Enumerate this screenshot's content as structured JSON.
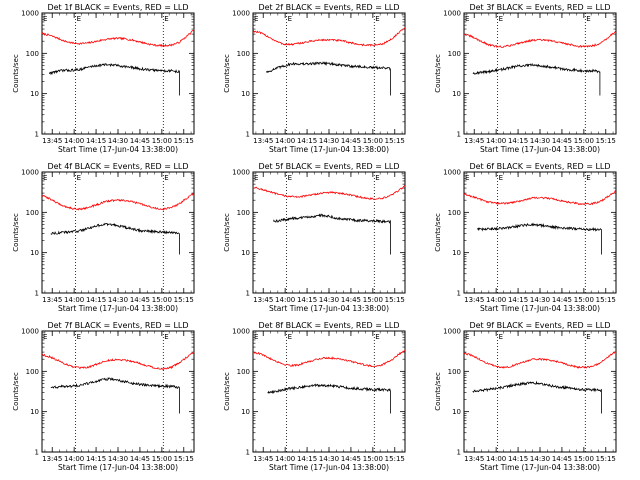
{
  "chart_data": [
    {
      "type": "line",
      "title": "Det 1f BLACK = Events, RED = LLD",
      "ylabel": "Counts/sec",
      "xlabel": "Start Time (17-Jun-04 13:38:00)",
      "y_scale": "log",
      "ylim": [
        1,
        1000
      ],
      "yticks": [
        "1",
        "10",
        "100",
        "1000"
      ],
      "xticks": [
        "13:45",
        "14:00",
        "14:15",
        "14:30",
        "14:45",
        "15:00",
        "15:15"
      ],
      "x_range": [
        "13:38",
        "15:22"
      ],
      "vlines": [
        "14:01",
        "15:01"
      ],
      "vline_label": "E",
      "series": [
        {
          "color": "#ff0000",
          "values": [
            310,
            280,
            240,
            200,
            180,
            175,
            180,
            195,
            215,
            230,
            235,
            228,
            210,
            190,
            170,
            158,
            155,
            160,
            185,
            260,
            380
          ]
        },
        {
          "color": "#000000",
          "values": [
            null,
            32,
            36,
            38,
            38,
            40,
            45,
            49,
            52,
            52,
            50,
            47,
            44,
            41,
            39,
            38,
            37,
            37,
            35,
            null,
            null
          ]
        }
      ],
      "series_extent": [
        {
          "start": "13:38",
          "end": "15:22"
        },
        {
          "start": "13:43",
          "end": "15:12"
        }
      ]
    },
    {
      "type": "line",
      "title": "Det 2f BLACK = Events, RED = LLD",
      "ylabel": "Counts/sec",
      "xlabel": "Start Time (17-Jun-04 13:38:00)",
      "y_scale": "log",
      "ylim": [
        1,
        1000
      ],
      "yticks": [
        "1",
        "10",
        "100",
        "1000"
      ],
      "xticks": [
        "13:45",
        "14:00",
        "14:15",
        "14:30",
        "14:45",
        "15:00",
        "15:15"
      ],
      "x_range": [
        "13:38",
        "15:22"
      ],
      "vlines": [
        "14:01",
        "15:01"
      ],
      "vline_label": "E",
      "series": [
        {
          "color": "#ff0000",
          "values": [
            360,
            320,
            260,
            200,
            170,
            165,
            175,
            190,
            205,
            215,
            215,
            210,
            200,
            180,
            165,
            160,
            160,
            170,
            210,
            300,
            430
          ]
        },
        {
          "color": "#000000",
          "values": [
            null,
            null,
            35,
            42,
            48,
            55,
            55,
            54,
            56,
            58,
            56,
            52,
            50,
            48,
            47,
            45,
            44,
            44,
            42,
            null,
            null
          ]
        }
      ],
      "series_extent": [
        {
          "start": "13:38",
          "end": "15:22"
        },
        {
          "start": "13:47",
          "end": "15:12"
        }
      ]
    },
    {
      "type": "line",
      "title": "Det 3f BLACK = Events, RED = LLD",
      "ylabel": "Counts/sec",
      "xlabel": "Start Time (17-Jun-04 13:38:00)",
      "y_scale": "log",
      "ylim": [
        1,
        1000
      ],
      "yticks": [
        "1",
        "10",
        "100",
        "1000"
      ],
      "xticks": [
        "13:45",
        "14:00",
        "14:15",
        "14:30",
        "14:45",
        "15:00",
        "15:15"
      ],
      "x_range": [
        "13:38",
        "15:22"
      ],
      "vlines": [
        "14:01",
        "15:01"
      ],
      "vline_label": "E",
      "series": [
        {
          "color": "#ff0000",
          "values": [
            300,
            260,
            210,
            170,
            150,
            145,
            155,
            175,
            195,
            210,
            215,
            210,
            195,
            180,
            165,
            150,
            148,
            155,
            180,
            250,
            360
          ]
        },
        {
          "color": "#000000",
          "values": [
            null,
            32,
            33,
            35,
            37,
            40,
            44,
            48,
            50,
            51,
            50,
            47,
            44,
            41,
            39,
            38,
            37,
            37,
            35,
            null,
            null
          ]
        }
      ],
      "series_extent": [
        {
          "start": "13:38",
          "end": "15:22"
        },
        {
          "start": "13:44",
          "end": "15:11"
        }
      ]
    },
    {
      "type": "line",
      "title": "Det 4f BLACK = Events, RED = LLD",
      "ylabel": "Counts/sec",
      "xlabel": "Start Time (17-Jun-04 13:38:00)",
      "y_scale": "log",
      "ylim": [
        1,
        1000
      ],
      "yticks": [
        "1",
        "10",
        "100",
        "1000"
      ],
      "xticks": [
        "13:45",
        "14:00",
        "14:15",
        "14:30",
        "14:45",
        "15:00",
        "15:15"
      ],
      "x_range": [
        "13:38",
        "15:22"
      ],
      "vlines": [
        "14:01",
        "15:01"
      ],
      "vline_label": "E",
      "series": [
        {
          "color": "#ff0000",
          "values": [
            260,
            220,
            170,
            140,
            125,
            120,
            130,
            150,
            175,
            195,
            200,
            195,
            180,
            160,
            140,
            125,
            120,
            130,
            160,
            220,
            300
          ]
        },
        {
          "color": "#000000",
          "values": [
            null,
            30,
            31,
            32,
            33,
            35,
            40,
            45,
            50,
            50,
            47,
            42,
            38,
            35,
            34,
            33,
            32,
            32,
            31,
            null,
            null
          ]
        }
      ],
      "series_extent": [
        {
          "start": "13:38",
          "end": "15:22"
        },
        {
          "start": "13:44",
          "end": "15:12"
        }
      ]
    },
    {
      "type": "line",
      "title": "Det 5f BLACK = Events, RED = LLD",
      "ylabel": "Counts/sec",
      "xlabel": "Start Time (17-Jun-04 13:38:00)",
      "y_scale": "log",
      "ylim": [
        1,
        1000
      ],
      "yticks": [
        "1",
        "10",
        "100",
        "1000"
      ],
      "xticks": [
        "13:45",
        "14:00",
        "14:15",
        "14:30",
        "14:45",
        "15:00",
        "15:15"
      ],
      "x_range": [
        "13:38",
        "15:22"
      ],
      "vlines": [
        "14:01",
        "15:01"
      ],
      "vline_label": "E",
      "series": [
        {
          "color": "#ff0000",
          "values": [
            420,
            380,
            330,
            290,
            260,
            245,
            245,
            255,
            275,
            300,
            310,
            305,
            290,
            265,
            240,
            220,
            215,
            220,
            255,
            330,
            450
          ]
        },
        {
          "color": "#000000",
          "values": [
            null,
            null,
            null,
            60,
            65,
            70,
            72,
            75,
            80,
            85,
            80,
            72,
            68,
            65,
            63,
            62,
            61,
            60,
            58,
            null,
            null
          ]
        }
      ],
      "series_extent": [
        {
          "start": "13:38",
          "end": "15:22"
        },
        {
          "start": "13:52",
          "end": "15:12"
        }
      ]
    },
    {
      "type": "line",
      "title": "Det 6f BLACK = Events, RED = LLD",
      "ylabel": "Counts/sec",
      "xlabel": "Start Time (17-Jun-04 13:38:00)",
      "y_scale": "log",
      "ylim": [
        1,
        1000
      ],
      "yticks": [
        "1",
        "10",
        "100",
        "1000"
      ],
      "xticks": [
        "13:45",
        "14:00",
        "14:15",
        "14:30",
        "14:45",
        "15:00",
        "15:15"
      ],
      "x_range": [
        "13:38",
        "15:22"
      ],
      "vlines": [
        "14:01",
        "15:01"
      ],
      "vline_label": "E",
      "series": [
        {
          "color": "#ff0000",
          "values": [
            280,
            250,
            215,
            185,
            170,
            165,
            170,
            185,
            205,
            225,
            230,
            225,
            210,
            190,
            175,
            165,
            160,
            165,
            190,
            250,
            340
          ]
        },
        {
          "color": "#000000",
          "values": [
            null,
            null,
            38,
            38,
            39,
            40,
            42,
            45,
            48,
            50,
            48,
            45,
            43,
            41,
            40,
            39,
            38,
            38,
            37,
            null,
            null
          ]
        }
      ],
      "series_extent": [
        {
          "start": "13:38",
          "end": "15:22"
        },
        {
          "start": "13:47",
          "end": "15:12"
        }
      ]
    },
    {
      "type": "line",
      "title": "Det 7f BLACK = Events, RED = LLD",
      "ylabel": "Counts/sec",
      "xlabel": "Start Time (17-Jun-04 13:38:00)",
      "y_scale": "log",
      "ylim": [
        1,
        1000
      ],
      "yticks": [
        "1",
        "10",
        "100",
        "1000"
      ],
      "xticks": [
        "13:45",
        "14:00",
        "14:15",
        "14:30",
        "14:45",
        "15:00",
        "15:15"
      ],
      "x_range": [
        "13:38",
        "15:22"
      ],
      "vlines": [
        "14:01",
        "15:01"
      ],
      "vline_label": "E",
      "series": [
        {
          "color": "#ff0000",
          "values": [
            260,
            230,
            190,
            155,
            130,
            120,
            125,
            145,
            170,
            190,
            195,
            190,
            175,
            155,
            135,
            120,
            115,
            125,
            160,
            220,
            300
          ]
        },
        {
          "color": "#000000",
          "values": [
            null,
            40,
            41,
            42,
            43,
            45,
            50,
            55,
            62,
            65,
            60,
            55,
            50,
            47,
            45,
            44,
            43,
            42,
            40,
            null,
            null
          ]
        }
      ],
      "series_extent": [
        {
          "start": "13:38",
          "end": "15:22"
        },
        {
          "start": "13:44",
          "end": "15:12"
        }
      ]
    },
    {
      "type": "line",
      "title": "Det 8f BLACK = Events, RED = LLD",
      "ylabel": "Counts/sec",
      "xlabel": "Start Time (17-Jun-04 13:38:00)",
      "y_scale": "log",
      "ylim": [
        1,
        1000
      ],
      "yticks": [
        "1",
        "10",
        "100",
        "1000"
      ],
      "xticks": [
        "13:45",
        "14:00",
        "14:15",
        "14:30",
        "14:45",
        "15:00",
        "15:15"
      ],
      "x_range": [
        "13:38",
        "15:22"
      ],
      "vlines": [
        "14:01",
        "15:01"
      ],
      "vline_label": "E",
      "series": [
        {
          "color": "#ff0000",
          "values": [
            300,
            270,
            220,
            180,
            150,
            140,
            145,
            165,
            190,
            210,
            215,
            210,
            195,
            175,
            155,
            140,
            135,
            145,
            180,
            250,
            340
          ]
        },
        {
          "color": "#000000",
          "values": [
            null,
            null,
            30,
            32,
            35,
            38,
            40,
            42,
            45,
            45,
            44,
            42,
            40,
            38,
            37,
            36,
            35,
            35,
            34,
            null,
            null
          ]
        }
      ],
      "series_extent": [
        {
          "start": "13:38",
          "end": "15:22"
        },
        {
          "start": "13:48",
          "end": "15:12"
        }
      ]
    },
    {
      "type": "line",
      "title": "Det 9f BLACK = Events, RED = LLD",
      "ylabel": "Counts/sec",
      "xlabel": "Start Time (17-Jun-04 13:38:00)",
      "y_scale": "log",
      "ylim": [
        1,
        1000
      ],
      "yticks": [
        "1",
        "10",
        "100",
        "1000"
      ],
      "xticks": [
        "13:45",
        "14:00",
        "14:15",
        "14:30",
        "14:45",
        "15:00",
        "15:15"
      ],
      "x_range": [
        "13:38",
        "15:22"
      ],
      "vlines": [
        "14:01",
        "15:01"
      ],
      "vline_label": "E",
      "series": [
        {
          "color": "#ff0000",
          "values": [
            280,
            250,
            200,
            160,
            135,
            125,
            130,
            150,
            175,
            195,
            200,
            195,
            180,
            160,
            140,
            128,
            125,
            135,
            165,
            230,
            310
          ]
        },
        {
          "color": "#000000",
          "values": [
            null,
            32,
            33,
            35,
            37,
            40,
            43,
            47,
            50,
            52,
            50,
            46,
            42,
            40,
            38,
            36,
            35,
            35,
            34,
            null,
            null
          ]
        }
      ],
      "series_extent": [
        {
          "start": "13:38",
          "end": "15:22"
        },
        {
          "start": "13:44",
          "end": "15:12"
        }
      ]
    }
  ]
}
